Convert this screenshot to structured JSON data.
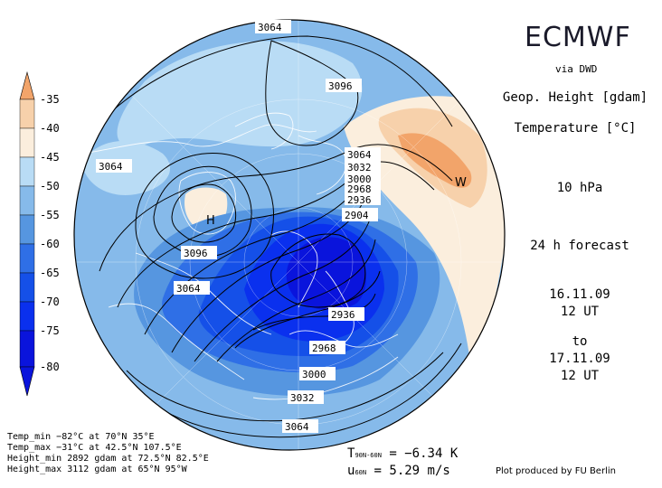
{
  "header": {
    "brand": "ECMWF",
    "via": "via DWD",
    "field1": "Geop. Height [gdam]",
    "field2": "Temperature [°C]",
    "level": "10 hPa",
    "forecast": "24 h forecast",
    "date_start": "16.11.09",
    "time_start": "12 UT",
    "to": "to",
    "date_end": "17.11.09",
    "time_end": "12 UT"
  },
  "colorbar": {
    "labels": [
      "-35",
      "-40",
      "-45",
      "-50",
      "-55",
      "-60",
      "-65",
      "-70",
      "-75",
      "-80"
    ],
    "colors": [
      "#f2a46a",
      "#f7d1ab",
      "#fbeedd",
      "#b9dcf5",
      "#86baea",
      "#5696e0",
      "#2f6fe6",
      "#1550e8",
      "#0a30ee",
      "#0a14dc"
    ]
  },
  "contour_labels": [
    "3064",
    "3096",
    "3064",
    "3064",
    "3096",
    "3064",
    "3032",
    "3000",
    "2968",
    "2936",
    "2904",
    "2936",
    "2968",
    "3000",
    "3032",
    "3064",
    "3064"
  ],
  "markers": {
    "high": "H",
    "warm": "W"
  },
  "stats": {
    "temp_min": "Temp_min −82°C at 70°N 35°E",
    "temp_max": "Temp_max −31°C at 42.5°N 107.5°E",
    "height_min": "Height_min 2892 gdam at 72.5°N 82.5°E",
    "height_max": "Height_max 3112 gdam at 65°N 95°W"
  },
  "means": {
    "t_symbol": "T",
    "t_sub": "90N-60N",
    "t_value": "= −6.34 K",
    "u_symbol": "u",
    "u_sub": "60N",
    "u_value": "= 5.29 m/s"
  },
  "credit": "Plot produced by FU Berlin"
}
